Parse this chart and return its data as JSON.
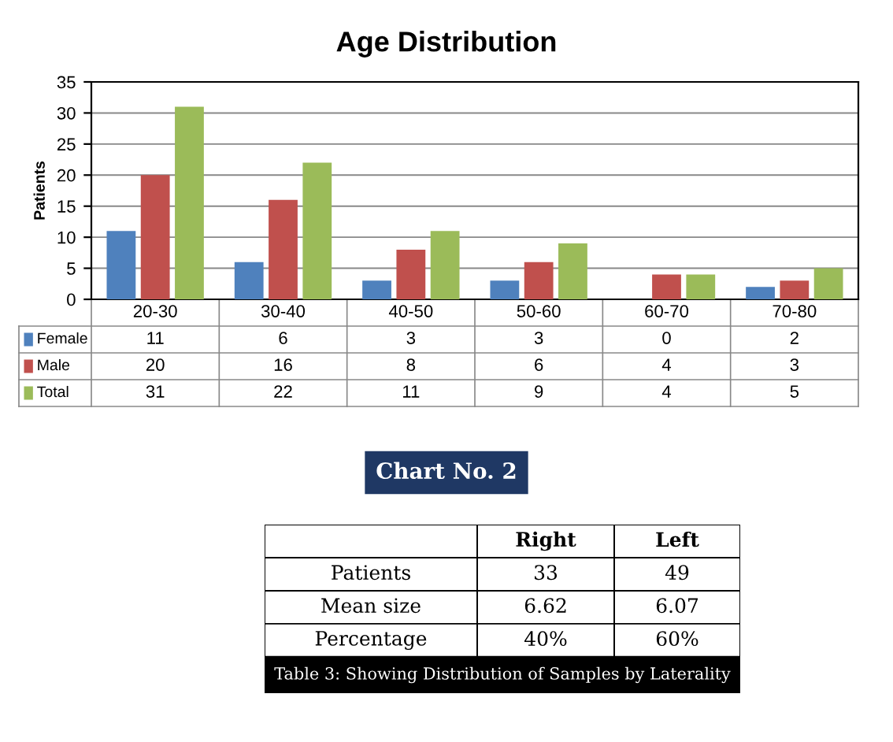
{
  "chart_data": [
    {
      "type": "bar",
      "title": "Age Distribution",
      "ylabel": "Patients",
      "categories": [
        "20-30",
        "30-40",
        "40-50",
        "50-60",
        "60-70",
        "70-80"
      ],
      "series": [
        {
          "name": "Female",
          "color": "#4f81bd",
          "values": [
            11,
            6,
            3,
            3,
            0,
            2
          ]
        },
        {
          "name": "Male",
          "color": "#c0504d",
          "values": [
            20,
            16,
            8,
            6,
            4,
            3
          ]
        },
        {
          "name": "Total",
          "color": "#9bbb59",
          "values": [
            31,
            22,
            11,
            9,
            4,
            5
          ]
        }
      ],
      "ylim": [
        0,
        35
      ],
      "yticks": [
        0,
        5,
        10,
        15,
        20,
        25,
        30,
        35
      ],
      "grid": "y",
      "legend": "bottom",
      "data_labels": true,
      "annotations": [
        "Chart No. 2"
      ]
    },
    {
      "type": "other",
      "title": "Table 3: Showing Distribution of Samples by Laterality",
      "categories": [
        "Right",
        "Left"
      ],
      "y_categories": [
        "Patients",
        "Mean size",
        "Percentage"
      ],
      "cell_labels": [
        [
          "33",
          "49"
        ],
        [
          "6.62",
          "6.07"
        ],
        [
          "40%",
          "60%"
        ]
      ]
    }
  ]
}
